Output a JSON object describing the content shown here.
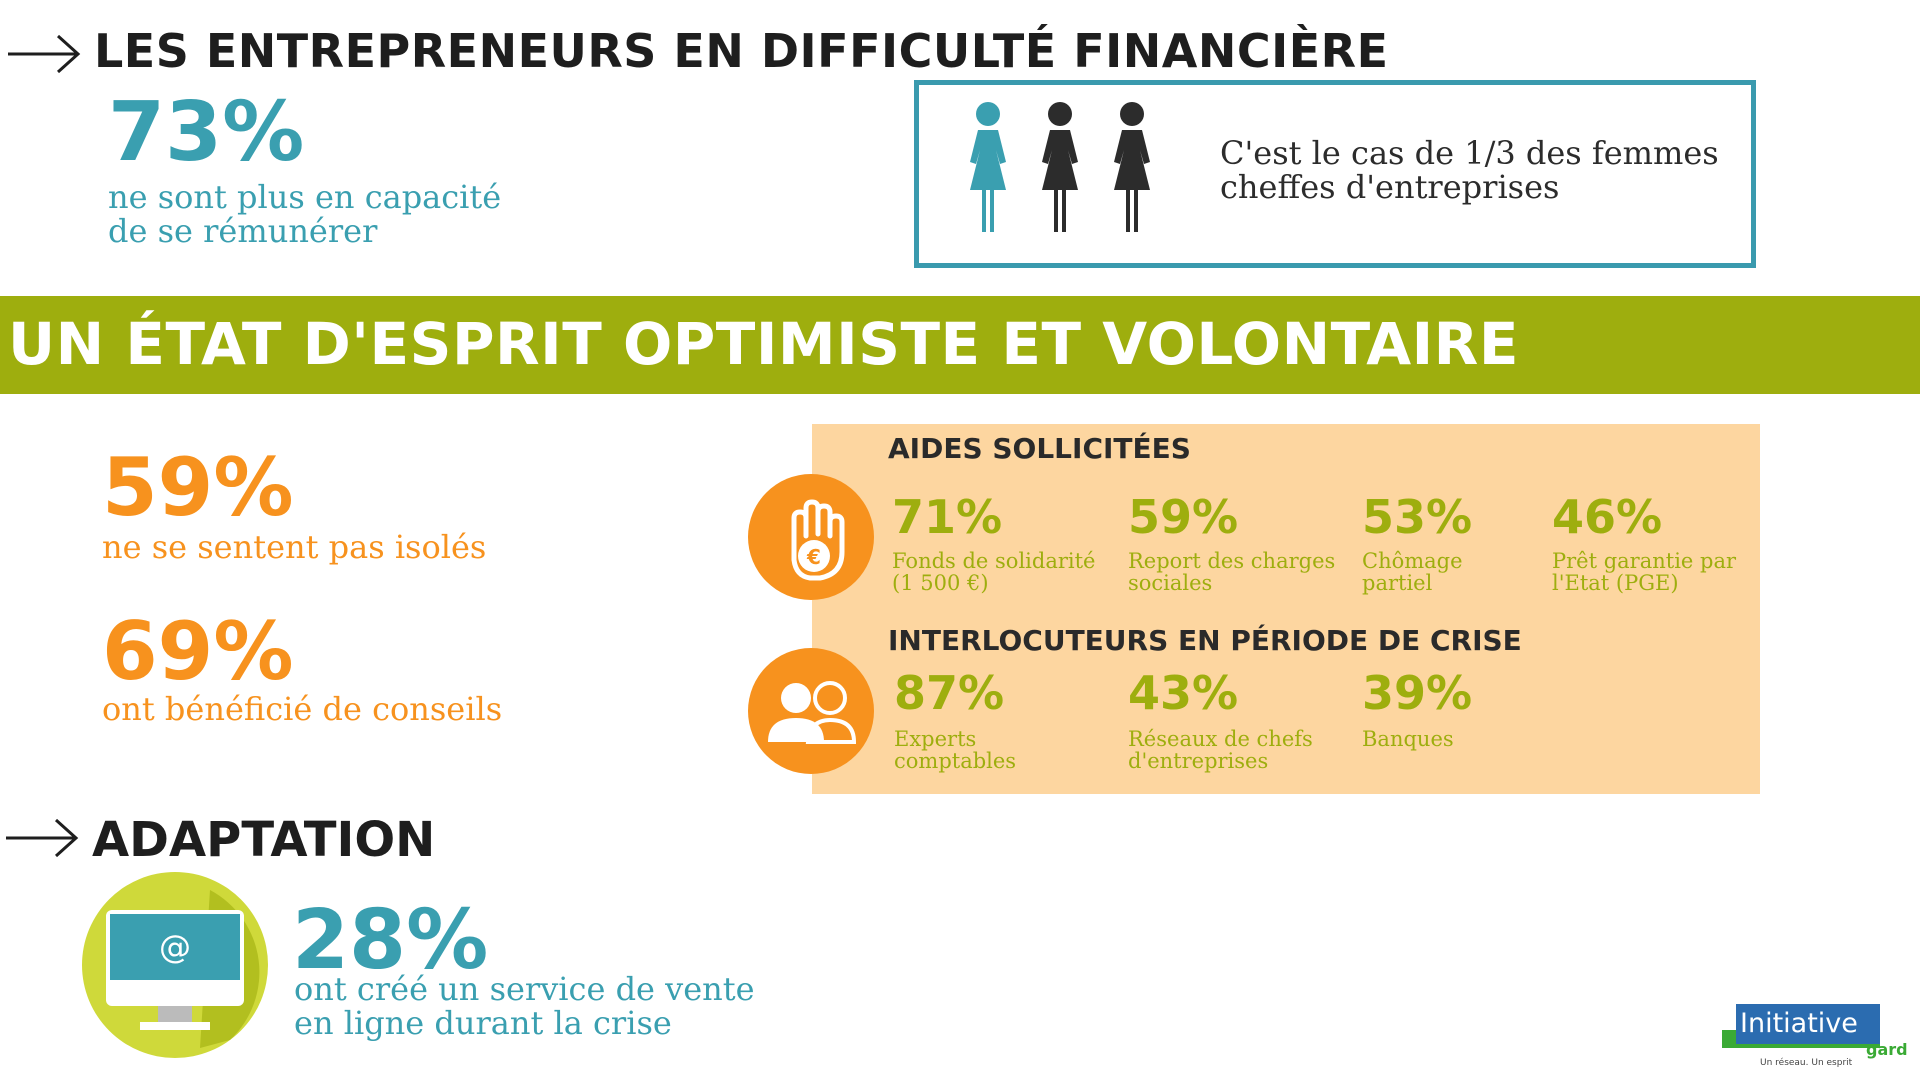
{
  "section_financial": {
    "title": "LES ENTREPRENEURS EN DIFFICULTÉ FINANCIÈRE",
    "stat": "73%",
    "stat_desc_line1": "ne sont plus en capacité",
    "stat_desc_line2": "de se rémunérer",
    "women_text_line1": "C'est le cas de 1/3 des femmes",
    "women_text_line2": "cheffes d'entreprises",
    "women_icons": [
      "woman-icon-highlighted",
      "woman-icon",
      "woman-icon"
    ]
  },
  "banner": {
    "title": "UN ÉTAT D'ESPRIT OPTIMISTE ET VOLONTAIRE"
  },
  "optimism": {
    "isolated_stat": "59%",
    "isolated_desc": "ne se sentent pas isolés",
    "advice_stat": "69%",
    "advice_desc": "ont bénéficié de conseils"
  },
  "aids": {
    "title": "AIDES SOLLICITÉES",
    "items": [
      {
        "value": "71%",
        "label_line1": "Fonds de solidarité",
        "label_line2": "(1 500 €)"
      },
      {
        "value": "59%",
        "label_line1": "Report des charges",
        "label_line2": "sociales"
      },
      {
        "value": "53%",
        "label_line1": "Chômage",
        "label_line2": "partiel"
      },
      {
        "value": "46%",
        "label_line1": "Prêt garantie par",
        "label_line2": "l'Etat (PGE)"
      }
    ]
  },
  "contacts": {
    "title": "INTERLOCUTEURS EN PÉRIODE DE CRISE",
    "items": [
      {
        "value": "87%",
        "label_line1": "Experts",
        "label_line2": "comptables"
      },
      {
        "value": "43%",
        "label_line1": "Réseaux de chefs",
        "label_line2": "d'entreprises"
      },
      {
        "value": "39%",
        "label_line1": "Banques",
        "label_line2": ""
      }
    ]
  },
  "adaptation": {
    "title": "ADAPTATION",
    "stat": "28%",
    "desc_line1": "ont créé un service de vente",
    "desc_line2": "en ligne durant la crise",
    "screen_symbol": "@"
  },
  "logo": {
    "name": "Initiative",
    "region": "gard",
    "tagline": "Un réseau. Un esprit"
  },
  "colors": {
    "teal": "#3a9fb0",
    "orange": "#f7921e",
    "green": "#9eae0e",
    "panel_bg": "#fdd6a0",
    "dark": "#1e1e1e"
  }
}
